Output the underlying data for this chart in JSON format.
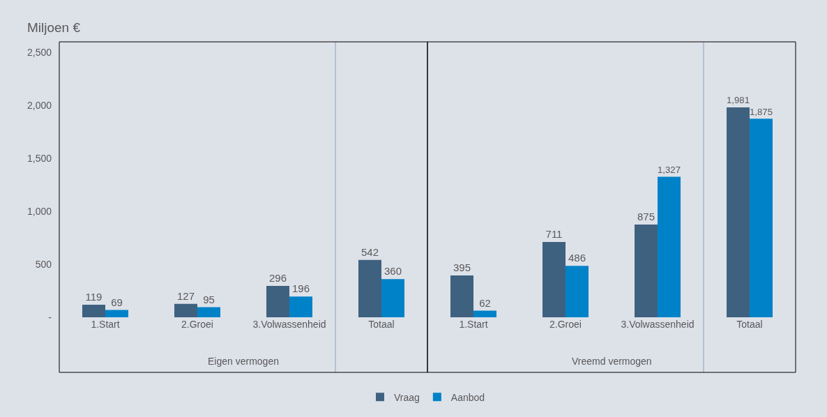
{
  "chart_data": {
    "type": "bar",
    "ylabel": "Miljoen €",
    "categories": [
      "1.Start",
      "2.Groei",
      "3.Volwassenheid",
      "Totaal",
      "1.Start",
      "2.Groei",
      "3.Volwassenheid",
      "Totaal"
    ],
    "series": [
      {
        "name": "Vraag",
        "color": "#3f6180",
        "values": [
          119,
          127,
          296,
          542,
          395,
          711,
          875,
          1981
        ],
        "value_labels": [
          "119",
          "127",
          "296",
          "542",
          "395",
          "711",
          "875",
          "1,981"
        ]
      },
      {
        "name": "Aanbod",
        "color": "#0082c8",
        "values": [
          69,
          95,
          196,
          360,
          62,
          486,
          1327,
          1875
        ],
        "value_labels": [
          "69",
          "95",
          "196",
          "360",
          "62",
          "486",
          "1,327",
          "1,875"
        ]
      }
    ],
    "ylim": [
      0,
      2600
    ],
    "yticks": [
      {
        "value": 0,
        "label": "-"
      },
      500,
      {
        "value": 1000,
        "label": "1,000"
      },
      {
        "value": 1500,
        "label": "1,500"
      },
      {
        "value": 2000,
        "label": "2,000"
      },
      {
        "value": 2500,
        "label": "2,500"
      }
    ],
    "grid": false,
    "legend": "bottom",
    "annotations": [
      "Eigen vermogen",
      "Vreemd vermogen"
    ]
  }
}
